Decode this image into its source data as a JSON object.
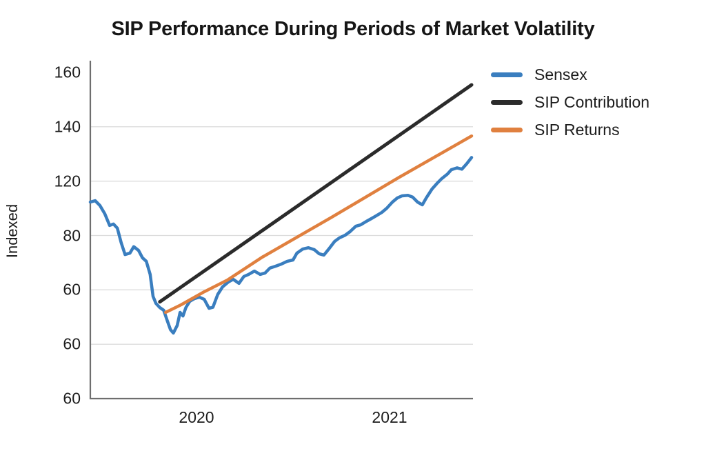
{
  "chart_data": {
    "type": "line",
    "title": "SIP Performance During Periods of Market Volatility",
    "ylabel": "Indexed",
    "xlabel": "",
    "grid": "horizontal",
    "legend_position": "top-right",
    "colors": {
      "sensex": "#3A7EBF",
      "sip_contribution": "#2B2B2B",
      "sip_returns": "#E0803F",
      "gridline": "#DCDCDC",
      "axis": "#6E6E6E",
      "text": "#1C1C1C"
    },
    "y_axis": {
      "tick_labels": [
        "160",
        "140",
        "120",
        "80",
        "60",
        "60",
        "60"
      ],
      "top_value": 160,
      "bottom_value": 40
    },
    "x_axis": {
      "tick_labels": [
        "2020",
        "2021"
      ],
      "tick_years": [
        2020,
        2021
      ],
      "range_years": [
        2019.45,
        2021.44
      ]
    },
    "series": [
      {
        "name": "Sensex",
        "color": "#3A7EBF",
        "width": 4.5,
        "x": [
          2019.45,
          2019.475,
          2019.5,
          2019.525,
          2019.55,
          2019.57,
          2019.59,
          2019.61,
          2019.63,
          2019.655,
          2019.675,
          2019.7,
          2019.72,
          2019.74,
          2019.76,
          2019.775,
          2019.79,
          2019.81,
          2019.83,
          2019.85,
          2019.865,
          2019.88,
          2019.9,
          2019.915,
          2019.93,
          2019.945,
          2019.965,
          2019.99,
          2020.015,
          2020.04,
          2020.065,
          2020.085,
          2020.11,
          2020.135,
          2020.165,
          2020.19,
          2020.22,
          2020.245,
          2020.27,
          2020.3,
          2020.33,
          2020.355,
          2020.38,
          2020.41,
          2020.44,
          2020.47,
          2020.5,
          2020.52,
          2020.55,
          2020.58,
          2020.61,
          2020.635,
          2020.66,
          2020.685,
          2020.715,
          2020.74,
          2020.77,
          2020.795,
          2020.825,
          2020.85,
          2020.88,
          2020.905,
          2020.93,
          2020.96,
          2020.985,
          2021.015,
          2021.04,
          2021.065,
          2021.095,
          2021.12,
          2021.145,
          2021.17,
          2021.19,
          2021.22,
          2021.245,
          2021.27,
          2021.3,
          2021.32,
          2021.35,
          2021.375,
          2021.4,
          2021.425
        ],
        "y": [
          112.3,
          112.8,
          111.0,
          108.0,
          103.7,
          104.2,
          102.7,
          97.3,
          93.0,
          93.5,
          95.9,
          94.5,
          91.8,
          90.5,
          85.7,
          77.6,
          75.0,
          73.5,
          72.5,
          68.4,
          65.4,
          64.1,
          66.9,
          71.7,
          70.4,
          73.5,
          75.8,
          76.8,
          77.3,
          76.5,
          73.2,
          73.6,
          78.3,
          81.1,
          82.9,
          83.9,
          82.4,
          84.9,
          85.7,
          86.9,
          85.7,
          86.2,
          88.0,
          88.7,
          89.5,
          90.5,
          91.0,
          93.5,
          95.0,
          95.5,
          94.8,
          93.3,
          92.8,
          95.0,
          97.8,
          99.1,
          100.1,
          101.4,
          103.4,
          103.9,
          105.2,
          106.2,
          107.2,
          108.5,
          110.0,
          112.3,
          113.8,
          114.6,
          114.8,
          114.1,
          112.3,
          111.3,
          113.8,
          117.1,
          119.1,
          120.9,
          122.6,
          124.2,
          124.9,
          124.4,
          126.4,
          128.7
        ]
      },
      {
        "name": "SIP Contribution",
        "color": "#2B2B2B",
        "width": 5,
        "x": [
          2019.81,
          2021.425
        ],
        "y": [
          75.6,
          155.4
        ]
      },
      {
        "name": "SIP Returns",
        "color": "#E0803F",
        "width": 4.5,
        "x": [
          2019.84,
          2019.92,
          2020.04,
          2020.16,
          2020.34,
          2020.7,
          2021.05,
          2021.425
        ],
        "y": [
          71.7,
          74.5,
          79.3,
          83.6,
          92.0,
          106.7,
          121.4,
          136.6
        ]
      }
    ]
  }
}
